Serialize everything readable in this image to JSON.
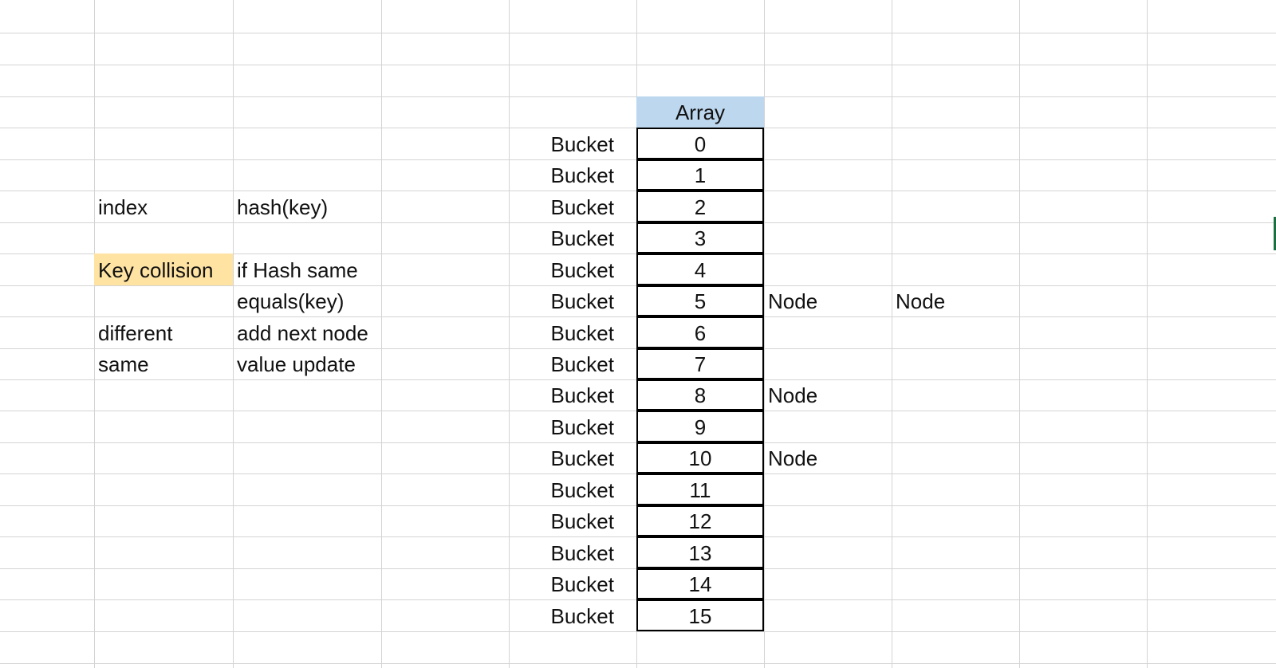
{
  "sheet": {
    "left_notes": [
      {
        "label": "index",
        "text": "hash(key)"
      },
      {
        "label": "Key collision",
        "text": "if Hash same"
      },
      {
        "label": "",
        "text": "equals(key)"
      },
      {
        "label": "different",
        "text": "add next node"
      },
      {
        "label": "same",
        "text": "value update"
      }
    ],
    "array_header": "Array",
    "bucket_label": "Bucket",
    "indices": [
      "0",
      "1",
      "2",
      "3",
      "4",
      "5",
      "6",
      "7",
      "8",
      "9",
      "10",
      "11",
      "12",
      "13",
      "14",
      "15"
    ],
    "node_label": "Node",
    "nodes_at_index": {
      "5": 2,
      "8": 1,
      "10": 1
    },
    "colors": {
      "highlight": "#ffe3a3",
      "header_fill": "#bdd7ee",
      "gridline": "#d4d4d4",
      "selection_border": "#1d6f42"
    }
  }
}
